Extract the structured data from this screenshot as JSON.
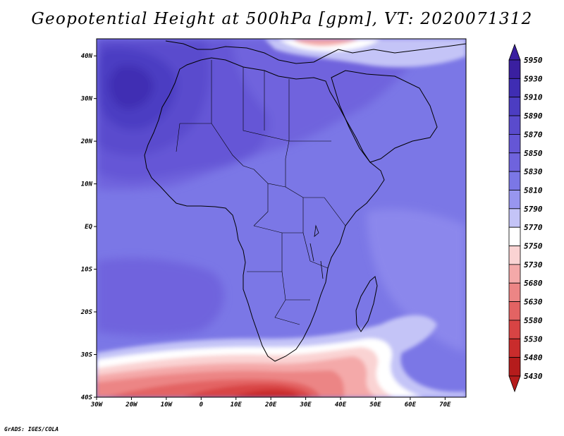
{
  "title": "Geopotential Height at 500hPa [gpm], VT: 2020071312",
  "credit": "GrADS: IGES/COLA",
  "map": {
    "lon_range": [
      -30,
      76
    ],
    "lat_range": [
      -40,
      44
    ],
    "lat_ticks": [
      {
        "lat": 40,
        "label": "40N"
      },
      {
        "lat": 30,
        "label": "30N"
      },
      {
        "lat": 20,
        "label": "20N"
      },
      {
        "lat": 10,
        "label": "10N"
      },
      {
        "lat": 0,
        "label": "EQ"
      },
      {
        "lat": -10,
        "label": "10S"
      },
      {
        "lat": -20,
        "label": "20S"
      },
      {
        "lat": -30,
        "label": "30S"
      },
      {
        "lat": -40,
        "label": "40S"
      }
    ],
    "lon_ticks": [
      {
        "lon": -30,
        "label": "30W"
      },
      {
        "lon": -20,
        "label": "20W"
      },
      {
        "lon": -10,
        "label": "10W"
      },
      {
        "lon": 0,
        "label": "0"
      },
      {
        "lon": 10,
        "label": "10E"
      },
      {
        "lon": 20,
        "label": "20E"
      },
      {
        "lon": 30,
        "label": "30E"
      },
      {
        "lon": 40,
        "label": "40E"
      },
      {
        "lon": 50,
        "label": "50E"
      },
      {
        "lon": 60,
        "label": "60E"
      },
      {
        "lon": 70,
        "label": "70E"
      }
    ],
    "background_color": "#7b77e6"
  },
  "colorbar": {
    "levels": [
      5950,
      5930,
      5910,
      5890,
      5870,
      5850,
      5830,
      5810,
      5790,
      5770,
      5750,
      5730,
      5680,
      5630,
      5580,
      5530,
      5480,
      5430
    ],
    "colors": [
      "#3a1fa0",
      "#3f2db3",
      "#4c3dc2",
      "#5a4bcd",
      "#6556d6",
      "#6f63dd",
      "#7b77e6",
      "#9896ef",
      "#c4c4f7",
      "#ffffff",
      "#fad3d3",
      "#f4a9a9",
      "#ec8585",
      "#e36363",
      "#d84444",
      "#c92c2c",
      "#b51c1c"
    ]
  }
}
